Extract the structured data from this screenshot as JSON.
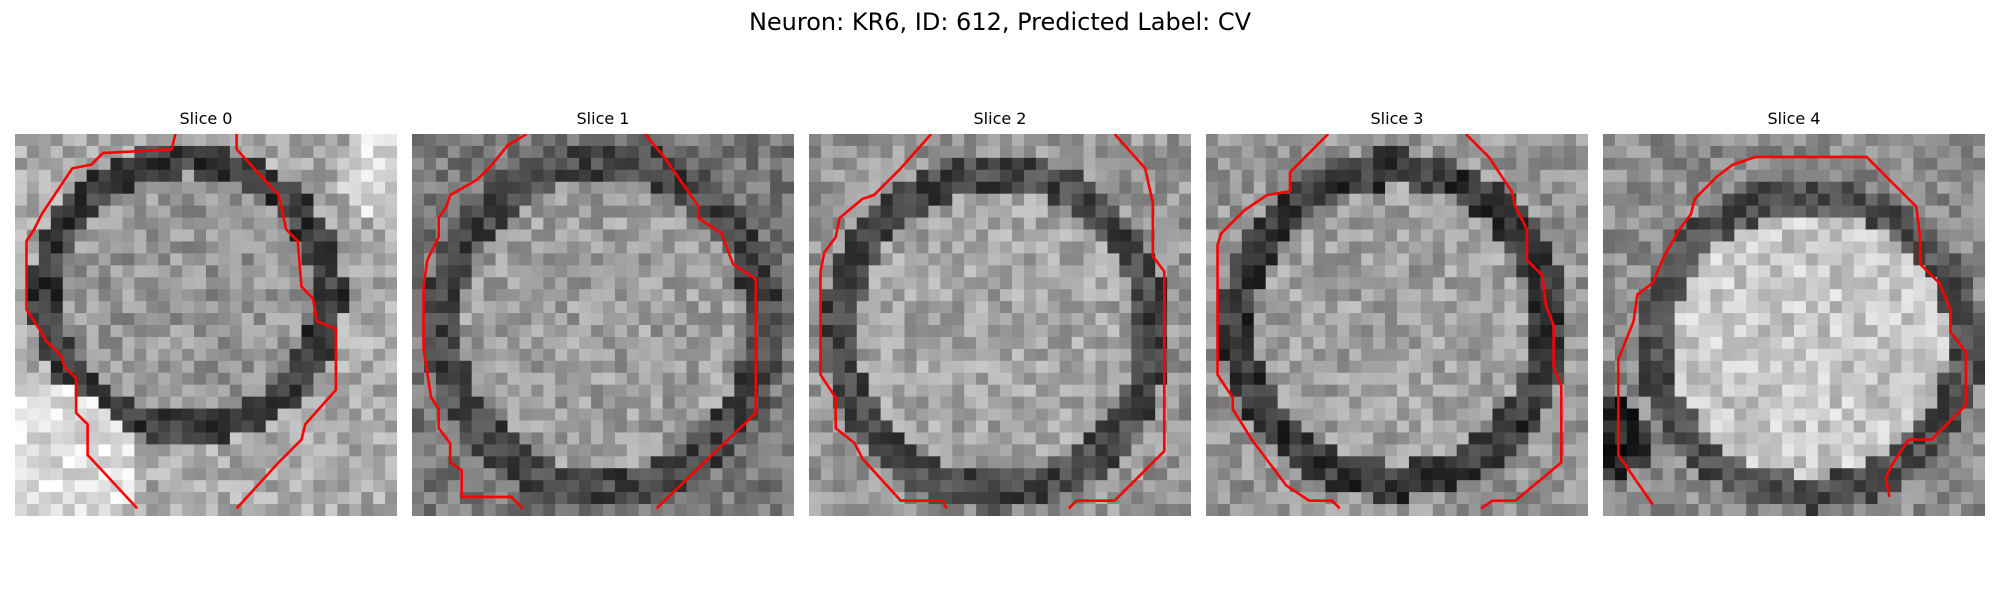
{
  "figure": {
    "title": "Neuron: KR6, ID: 612, Predicted Label: CV"
  },
  "colors": {
    "background": "#ffffff",
    "contour": "#ff0000",
    "image_colormap": "grayscale"
  },
  "panels": [
    {
      "title": "Slice 0"
    },
    {
      "title": "Slice 1"
    },
    {
      "title": "Slice 2"
    },
    {
      "title": "Slice 3"
    },
    {
      "title": "Slice 4"
    }
  ]
}
